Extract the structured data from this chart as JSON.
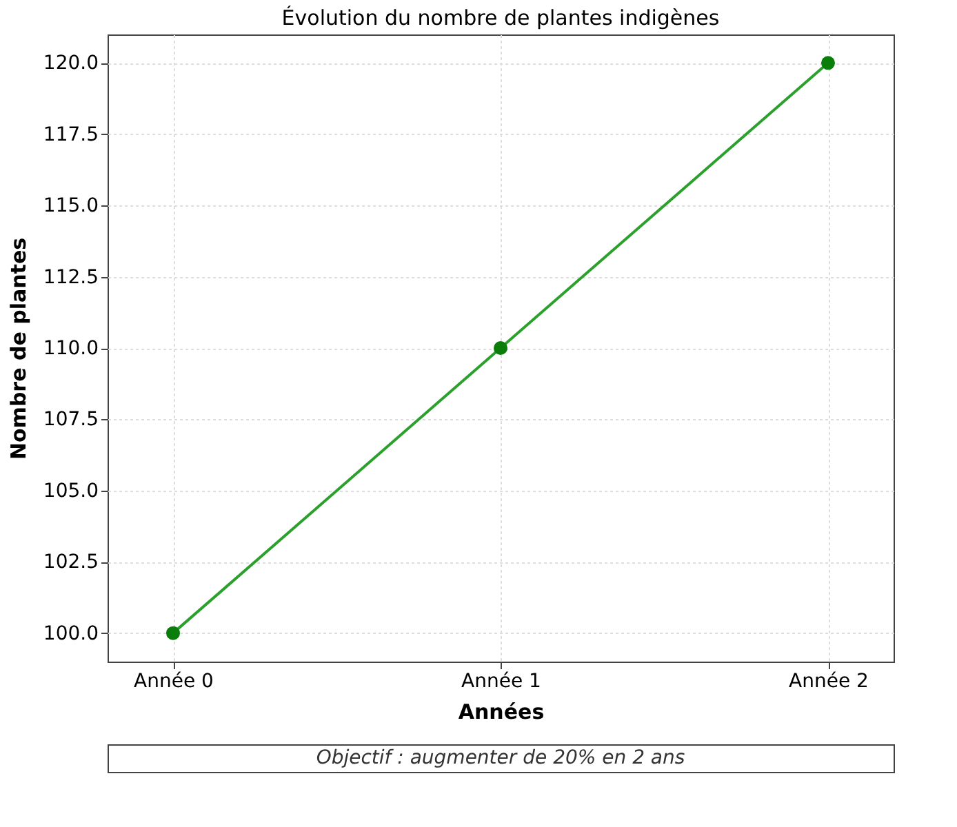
{
  "chart_data": {
    "type": "line",
    "title": "Évolution du nombre de plantes indigènes",
    "xlabel": "Années",
    "ylabel": "Nombre de plantes",
    "categories": [
      "Année 0",
      "Année 1",
      "Année 2"
    ],
    "series": [
      {
        "color": "#2ca02c",
        "values": [
          100,
          110,
          120
        ]
      }
    ],
    "ylim": [
      99,
      121
    ],
    "yticks": [
      {
        "value": 100,
        "label": "100.0"
      },
      {
        "value": 102.5,
        "label": "102.5"
      },
      {
        "value": 105,
        "label": "105.0"
      },
      {
        "value": 107.5,
        "label": "107.5"
      },
      {
        "value": 110,
        "label": "110.0"
      },
      {
        "value": 112.5,
        "label": "112.5"
      },
      {
        "value": 115,
        "label": "115.0"
      },
      {
        "value": 117.5,
        "label": "117.5"
      },
      {
        "value": 120,
        "label": "120.0"
      }
    ],
    "grid": true,
    "marker": "circle",
    "line_style": "solid",
    "annotations": [
      "Objectif : augmenter de 20% en 2 ans"
    ]
  }
}
